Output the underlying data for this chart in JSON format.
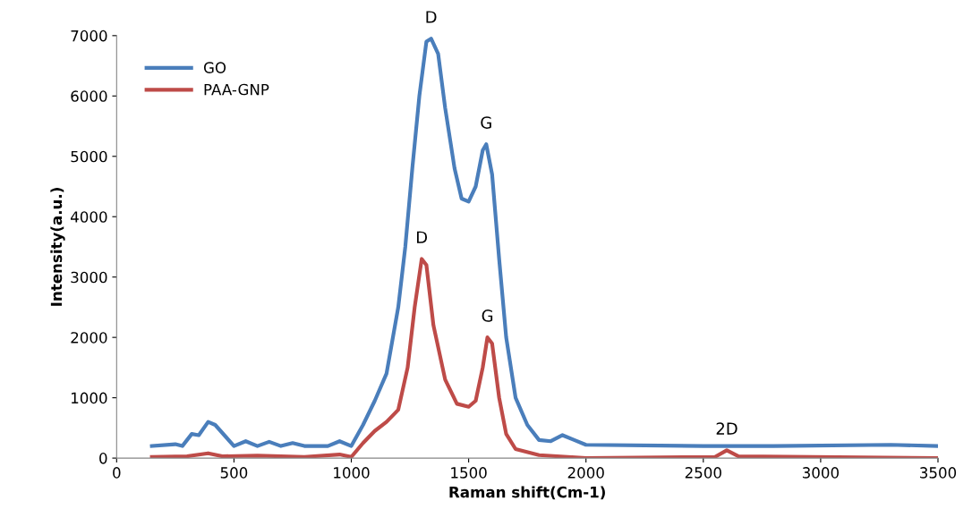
{
  "chart_data": {
    "type": "line",
    "xlabel": "Raman shift(Cm-1)",
    "ylabel": "Intensity(a.u.)",
    "xlim": [
      0,
      3500
    ],
    "xticks": [
      0,
      500,
      1000,
      1500,
      2000,
      2500,
      3000,
      3500
    ],
    "ylim": [
      0,
      7000
    ],
    "yticks": [
      0,
      1000,
      2000,
      3000,
      4000,
      5000,
      6000,
      7000
    ],
    "grid": false,
    "legend": "top left",
    "marker": "none",
    "line_style": "solid",
    "series": [
      {
        "name": "GO",
        "color": "#4a7ebb",
        "x": [
          150,
          250,
          280,
          320,
          350,
          390,
          420,
          500,
          550,
          600,
          650,
          700,
          750,
          800,
          900,
          950,
          1000,
          1050,
          1100,
          1150,
          1200,
          1230,
          1260,
          1290,
          1320,
          1340,
          1370,
          1400,
          1440,
          1470,
          1500,
          1530,
          1560,
          1575,
          1600,
          1630,
          1660,
          1700,
          1750,
          1800,
          1850,
          1900,
          1950,
          2000,
          2500,
          2800,
          3300,
          3500
        ],
        "values": [
          200,
          230,
          200,
          400,
          380,
          600,
          550,
          200,
          280,
          200,
          270,
          200,
          250,
          200,
          200,
          280,
          200,
          550,
          950,
          1400,
          2500,
          3500,
          4800,
          6000,
          6900,
          6950,
          6700,
          5800,
          4800,
          4300,
          4250,
          4500,
          5100,
          5200,
          4700,
          3300,
          2000,
          1000,
          550,
          300,
          280,
          380,
          300,
          220,
          200,
          200,
          220,
          200
        ]
      },
      {
        "name": "PAA-GNP",
        "color": "#be4b48",
        "x": [
          150,
          300,
          390,
          450,
          600,
          800,
          950,
          1000,
          1050,
          1100,
          1150,
          1200,
          1240,
          1270,
          1300,
          1320,
          1350,
          1400,
          1450,
          1500,
          1530,
          1560,
          1580,
          1600,
          1630,
          1660,
          1700,
          1800,
          2000,
          2550,
          2600,
          2650,
          3500
        ],
        "values": [
          20,
          30,
          80,
          30,
          40,
          20,
          60,
          20,
          250,
          450,
          600,
          800,
          1500,
          2500,
          3300,
          3200,
          2200,
          1300,
          900,
          850,
          950,
          1500,
          2000,
          1900,
          1000,
          400,
          150,
          50,
          0,
          20,
          130,
          30,
          0
        ]
      }
    ],
    "annotations": [
      {
        "text": "D",
        "x": 1340,
        "y": 6950
      },
      {
        "text": "G",
        "x": 1575,
        "y": 5200
      },
      {
        "text": "D",
        "x": 1300,
        "y": 3300
      },
      {
        "text": "G",
        "x": 1580,
        "y": 2000
      },
      {
        "text": "2D",
        "x": 2600,
        "y": 130
      }
    ]
  }
}
